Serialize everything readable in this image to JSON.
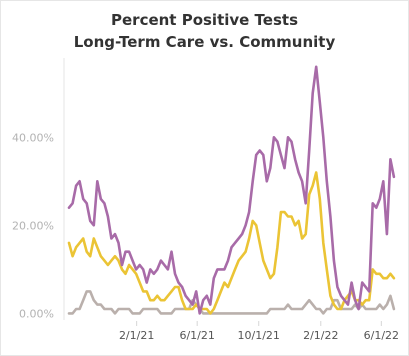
{
  "chart_data": {
    "type": "line",
    "title": "Percent Positive Tests",
    "subtitle": "Long-Term Care vs. Community",
    "x_tick_labels": [
      "2/1/21",
      "6/1/21",
      "10/1/21",
      "2/1/22",
      "6/1/22"
    ],
    "y_tick_labels": [
      "0.00%",
      "20.00%",
      "40.00%"
    ],
    "y_ticks": [
      0,
      20,
      40
    ],
    "ylim": [
      -1.5,
      58
    ],
    "xlim": [
      "2020-09-10",
      "2022-07-10"
    ],
    "grid": false,
    "legend": "none",
    "x": [
      "2020-09-20",
      "2020-09-27",
      "2020-10-04",
      "2020-10-11",
      "2020-10-18",
      "2020-10-25",
      "2020-11-01",
      "2020-11-08",
      "2020-11-15",
      "2020-11-22",
      "2020-11-29",
      "2020-12-06",
      "2020-12-13",
      "2020-12-20",
      "2020-12-27",
      "2021-01-03",
      "2021-01-10",
      "2021-01-17",
      "2021-01-24",
      "2021-01-31",
      "2021-02-07",
      "2021-02-14",
      "2021-02-21",
      "2021-02-28",
      "2021-03-07",
      "2021-03-14",
      "2021-03-21",
      "2021-03-28",
      "2021-04-04",
      "2021-04-11",
      "2021-04-18",
      "2021-04-25",
      "2021-05-02",
      "2021-05-09",
      "2021-05-16",
      "2021-05-23",
      "2021-05-30",
      "2021-06-06",
      "2021-06-13",
      "2021-06-20",
      "2021-06-27",
      "2021-07-04",
      "2021-07-11",
      "2021-07-18",
      "2021-07-25",
      "2021-08-01",
      "2021-08-08",
      "2021-08-15",
      "2021-08-22",
      "2021-08-29",
      "2021-09-05",
      "2021-09-12",
      "2021-09-19",
      "2021-09-26",
      "2021-10-03",
      "2021-10-10",
      "2021-10-17",
      "2021-10-24",
      "2021-10-31",
      "2021-11-07",
      "2021-11-14",
      "2021-11-21",
      "2021-11-28",
      "2021-12-05",
      "2021-12-12",
      "2021-12-19",
      "2021-12-26",
      "2022-01-02",
      "2022-01-09",
      "2022-01-16",
      "2022-01-23",
      "2022-01-30",
      "2022-02-06",
      "2022-02-13",
      "2022-02-20",
      "2022-02-27",
      "2022-03-06",
      "2022-03-13",
      "2022-03-20",
      "2022-03-27",
      "2022-04-03",
      "2022-04-10",
      "2022-04-17",
      "2022-04-24",
      "2022-05-01",
      "2022-05-08",
      "2022-05-15",
      "2022-05-22",
      "2022-05-29",
      "2022-06-05",
      "2022-06-12",
      "2022-06-19",
      "2022-06-26"
    ],
    "series": [
      {
        "color": "#a86ba8",
        "values": [
          24,
          25,
          29,
          30,
          26,
          25,
          21,
          20,
          30,
          26,
          25,
          22,
          17,
          18,
          16,
          11,
          14,
          14,
          12,
          10,
          11,
          10,
          7,
          10,
          9,
          10,
          12,
          11,
          10,
          14,
          9,
          7,
          6,
          4,
          3,
          2,
          5,
          0,
          3,
          4,
          2,
          8,
          10,
          10,
          10,
          12,
          15,
          16,
          17,
          18,
          20,
          23,
          30,
          36,
          37,
          36,
          30,
          33,
          40,
          39,
          36,
          33,
          40,
          39,
          35,
          32,
          30,
          25,
          37,
          50,
          56,
          48,
          40,
          30,
          22,
          12,
          6,
          4,
          3,
          2,
          7,
          3,
          1,
          7,
          6,
          5,
          25,
          24,
          26,
          30,
          18,
          35,
          31
        ]
      },
      {
        "color": "#ebc435",
        "values": [
          16,
          13,
          15,
          16,
          17,
          14,
          13,
          17,
          15,
          13,
          12,
          11,
          12,
          13,
          12,
          10,
          9,
          11,
          10,
          9,
          7,
          5,
          5,
          3,
          3,
          4,
          3,
          3,
          4,
          5,
          6,
          6,
          3,
          1,
          1,
          1,
          2,
          1,
          1,
          1,
          0,
          1,
          3,
          5,
          7,
          6,
          8,
          10,
          12,
          13,
          14,
          17,
          21,
          20,
          16,
          12,
          10,
          8,
          9,
          15,
          23,
          23,
          22,
          22,
          20,
          21,
          17,
          18,
          27,
          29,
          32,
          26,
          16,
          10,
          4,
          2,
          1,
          1,
          3,
          4,
          5,
          3,
          3,
          2,
          3,
          3,
          10,
          9,
          9,
          8,
          8,
          9,
          8
        ]
      },
      {
        "color": "#bab0ac",
        "values": [
          0,
          0,
          1,
          1,
          3,
          5,
          5,
          3,
          2,
          2,
          1,
          1,
          1,
          0,
          1,
          1,
          1,
          1,
          0,
          0,
          0,
          1,
          1,
          1,
          1,
          1,
          0,
          0,
          0,
          0,
          1,
          1,
          1,
          1,
          1,
          3,
          2,
          1,
          0,
          0,
          0,
          0,
          0,
          0,
          0,
          0,
          0,
          0,
          0,
          0,
          0,
          0,
          0,
          0,
          0,
          0,
          0,
          1,
          1,
          1,
          1,
          1,
          2,
          1,
          1,
          1,
          1,
          2,
          3,
          2,
          1,
          1,
          0,
          1,
          1,
          3,
          3,
          1,
          1,
          1,
          1,
          2,
          1,
          2,
          1,
          1,
          1,
          1,
          2,
          1,
          2,
          4,
          1
        ]
      }
    ]
  }
}
